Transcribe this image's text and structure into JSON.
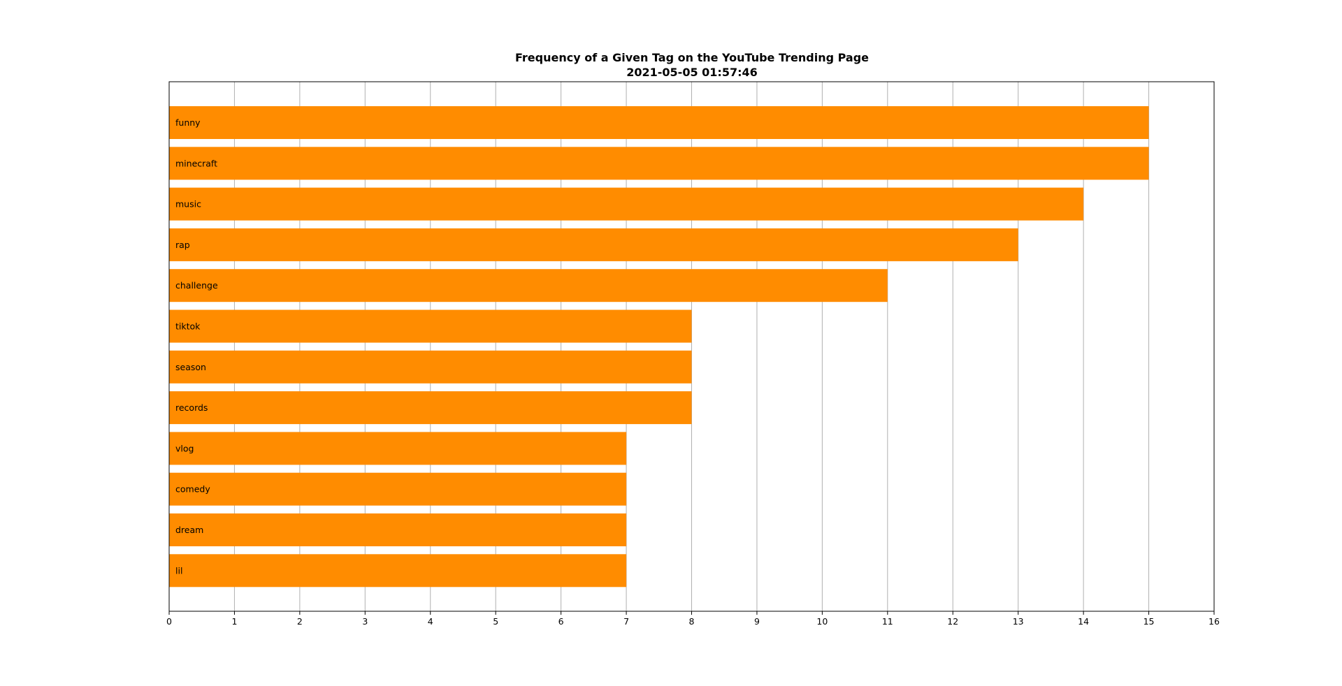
{
  "chart_data": {
    "type": "bar",
    "orientation": "horizontal",
    "title": "Frequency of a Given Tag on the YouTube Trending Page",
    "subtitle": "2021-05-05 01:57:46",
    "xlabel": "",
    "ylabel": "",
    "xlim": [
      0,
      16
    ],
    "xticks": [
      "0",
      "1",
      "2",
      "3",
      "4",
      "5",
      "6",
      "7",
      "8",
      "9",
      "10",
      "11",
      "12",
      "13",
      "14",
      "15",
      "16"
    ],
    "grid": "vertical",
    "bar_color": "#ff8c00",
    "categories": [
      "funny",
      "minecraft",
      "music",
      "rap",
      "challenge",
      "tiktok",
      "season",
      "records",
      "vlog",
      "comedy",
      "dream",
      "lil"
    ],
    "values": [
      15,
      15,
      14,
      13,
      11,
      8,
      8,
      8,
      7,
      7,
      7,
      7
    ]
  }
}
